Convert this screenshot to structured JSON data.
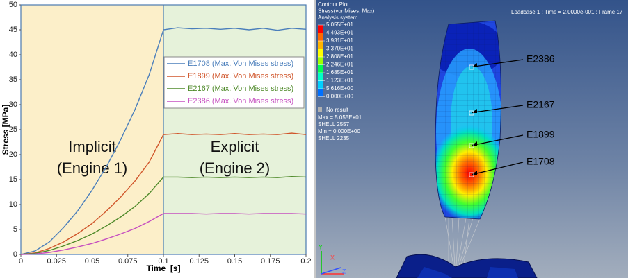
{
  "chart_data": {
    "type": "line",
    "x": [
      0,
      0.01,
      0.02,
      0.03,
      0.04,
      0.05,
      0.06,
      0.07,
      0.08,
      0.09,
      0.1,
      0.11,
      0.12,
      0.13,
      0.14,
      0.15,
      0.16,
      0.17,
      0.18,
      0.19,
      0.2
    ],
    "series": [
      {
        "name": "E1708 (Max. Von Mises stress)",
        "color": "#4a7ebb",
        "values": [
          0,
          0.7,
          2.5,
          5.4,
          8.8,
          12.9,
          17.6,
          23,
          29,
          36,
          45,
          45.4,
          45.2,
          45.3,
          45.1,
          45.3,
          45.0,
          45.3,
          44.9,
          45.3,
          45.1
        ]
      },
      {
        "name": "E1899 (Max. Von Mises stress)",
        "color": "#d0552a",
        "values": [
          0,
          0.3,
          1.2,
          2.5,
          4.2,
          6.2,
          8.7,
          11.5,
          14.7,
          18.5,
          24,
          24.2,
          24.0,
          24.1,
          24.0,
          24.2,
          24.0,
          24.1,
          24.0,
          24.3,
          24.0
        ]
      },
      {
        "name": "E2167 (Max. Von Mises stress)",
        "color": "#4f8a2a",
        "values": [
          0,
          0.2,
          0.8,
          1.7,
          2.8,
          4.1,
          5.7,
          7.5,
          9.6,
          12.2,
          15.5,
          15.5,
          15.4,
          15.5,
          15.4,
          15.5,
          15.4,
          15.5,
          15.4,
          15.6,
          15.5
        ]
      },
      {
        "name": "E2386 (Max. Von Mises stress)",
        "color": "#c64fc0",
        "values": [
          0,
          0.1,
          0.4,
          0.9,
          1.5,
          2.2,
          3.1,
          4.1,
          5.2,
          6.6,
          8.2,
          8.2,
          8.2,
          8.1,
          8.2,
          8.2,
          8.1,
          8.2,
          8.2,
          8.2,
          8.1
        ]
      }
    ],
    "xlabel": "Time  [s]",
    "ylabel": "Stress [MPa]",
    "xlim": [
      0,
      0.2
    ],
    "xticks": [
      0,
      0.025,
      0.05,
      0.075,
      0.1,
      0.125,
      0.15,
      0.175,
      0.2
    ],
    "ylim": [
      0,
      50
    ],
    "yticks": [
      0,
      5,
      10,
      15,
      20,
      25,
      30,
      35,
      40,
      45,
      50
    ],
    "regions": [
      {
        "xlim": [
          0,
          0.1
        ],
        "color": "#fcefc9",
        "label": [
          "Implicit",
          "(Engine 1)"
        ]
      },
      {
        "xlim": [
          0.1,
          0.2
        ],
        "color": "#e6f2da",
        "label": [
          "Explicit",
          "(Engine 2)"
        ]
      }
    ],
    "legend": "upper right"
  },
  "contour_plot": {
    "header": [
      "Contour Plot",
      "Stress(vonMises, Max)",
      "Analysis system"
    ],
    "levels": [
      "5.055E+01",
      "4.493E+01",
      "3.931E+01",
      "3.370E+01",
      "2.808E+01",
      "2.246E+01",
      "1.685E+01",
      "1.123E+01",
      "5.616E+00",
      "0.000E+00"
    ],
    "no_result": "No result",
    "footer": [
      "Max = 5.055E+01",
      "SHELL 2557",
      "Min = 0.000E+00",
      "SHELL 2235"
    ],
    "loadcase": "Loadcase 1 : Time = 2.0000e-001 : Frame 17",
    "elements": [
      "E2386",
      "E2167",
      "E1899",
      "E1708"
    ],
    "axes": [
      "Y",
      "X",
      "Z"
    ]
  }
}
